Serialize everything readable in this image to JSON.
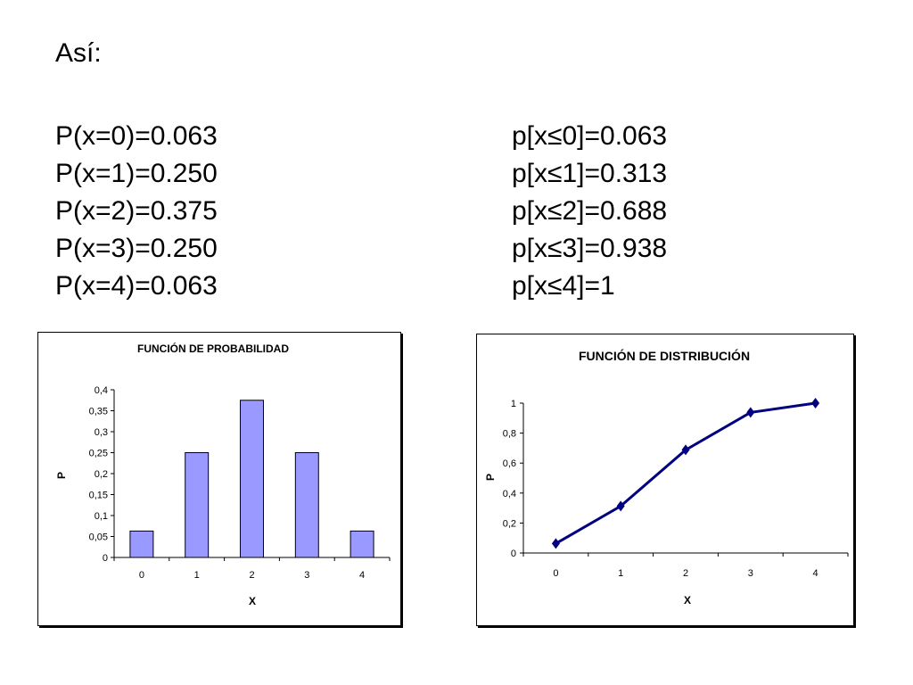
{
  "heading": "Así:",
  "left_lines": [
    "P(x=0)=0.063",
    "P(x=1)=0.250",
    "P(x=2)=0.375",
    "P(x=3)=0.250",
    "P(x=4)=0.063"
  ],
  "right_lines": [
    "p[x≤0]=0.063",
    "p[x≤1]=0.313",
    "p[x≤2]=0.688",
    "p[x≤3]=0.938",
    "p[x≤4]=1"
  ],
  "chart_data": [
    {
      "type": "bar",
      "title": "FUNCIÓN DE PROBABILIDAD",
      "xlabel": "X",
      "ylabel": "P",
      "categories": [
        "0",
        "1",
        "2",
        "3",
        "4"
      ],
      "values": [
        0.063,
        0.25,
        0.375,
        0.25,
        0.063
      ],
      "ylim": [
        0,
        0.4
      ],
      "yticks": [
        "0",
        "0,05",
        "0,1",
        "0,15",
        "0,2",
        "0,25",
        "0,3",
        "0,35",
        "0,4"
      ],
      "bar_color": "#9999ff",
      "grid": false,
      "legend": "none"
    },
    {
      "type": "line",
      "title": "FUNCIÓN DE DISTRIBUCIÓN",
      "xlabel": "X",
      "ylabel": "P",
      "categories": [
        "0",
        "1",
        "2",
        "3",
        "4"
      ],
      "values": [
        0.063,
        0.313,
        0.688,
        0.938,
        1
      ],
      "ylim": [
        0,
        1
      ],
      "yticks": [
        "0",
        "0,2",
        "0,4",
        "0,6",
        "0,8",
        "1"
      ],
      "line_color": "#000080",
      "marker": "diamond",
      "grid": false,
      "legend": "none"
    }
  ]
}
